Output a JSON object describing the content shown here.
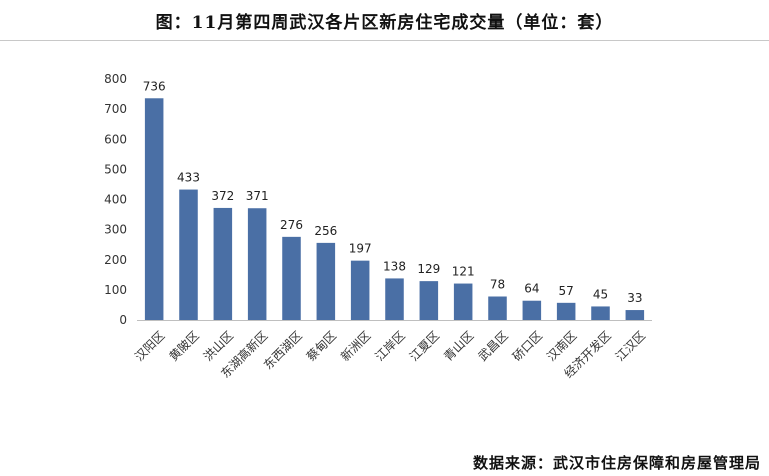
{
  "chart_data": {
    "type": "bar",
    "title": "图：11月第四周武汉各片区新房住宅成交量（单位：套）",
    "categories": [
      "汉阳区",
      "黄陂区",
      "洪山区",
      "东湖高新区",
      "东西湖区",
      "蔡甸区",
      "新洲区",
      "江岸区",
      "江夏区",
      "青山区",
      "武昌区",
      "硚口区",
      "汉南区",
      "经济开发区",
      "江汉区"
    ],
    "values": [
      736,
      433,
      372,
      371,
      276,
      256,
      197,
      138,
      129,
      121,
      78,
      64,
      57,
      45,
      33
    ],
    "ylim": [
      0,
      800
    ],
    "yticks": [
      0,
      100,
      200,
      300,
      400,
      500,
      600,
      700,
      800
    ],
    "xlabel": "",
    "ylabel": "",
    "grid": false,
    "bar_color": "#4a6fa5"
  },
  "source": "数据来源：武汉市住房保障和房屋管理局"
}
